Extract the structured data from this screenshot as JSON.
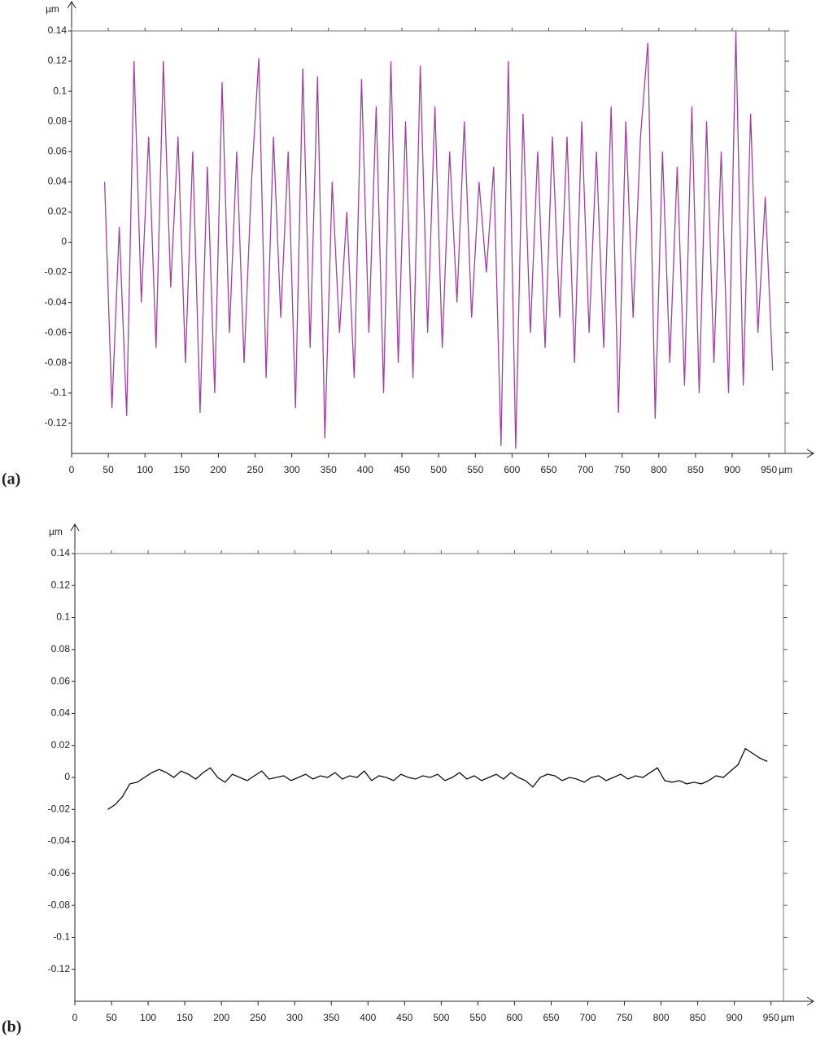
{
  "chart_data": [
    {
      "type": "line",
      "panel": "(a)",
      "ylabel": "µm",
      "xlabel": "µm",
      "xlim": [
        0,
        972
      ],
      "ylim": [
        -0.14,
        0.14
      ],
      "xticks": [
        0,
        50,
        100,
        150,
        200,
        250,
        300,
        350,
        400,
        450,
        500,
        550,
        600,
        650,
        700,
        750,
        800,
        850,
        900,
        950
      ],
      "yticks": [
        0.14,
        0.12,
        0.1,
        0.08,
        0.06,
        0.04,
        0.02,
        0,
        -0.02,
        -0.04,
        -0.06,
        -0.08,
        -0.1,
        -0.12
      ],
      "x": [
        45,
        55,
        65,
        75,
        85,
        95,
        105,
        115,
        125,
        135,
        145,
        155,
        165,
        175,
        185,
        195,
        205,
        215,
        225,
        235,
        245,
        255,
        265,
        275,
        285,
        295,
        305,
        315,
        325,
        335,
        345,
        355,
        365,
        375,
        385,
        395,
        405,
        415,
        425,
        435,
        445,
        455,
        465,
        475,
        485,
        495,
        505,
        515,
        525,
        535,
        545,
        555,
        565,
        575,
        585,
        595,
        605,
        615,
        625,
        635,
        645,
        655,
        665,
        675,
        685,
        695,
        705,
        715,
        725,
        735,
        745,
        755,
        765,
        775,
        785,
        795,
        805,
        815,
        825,
        835,
        845,
        855,
        865,
        875,
        885,
        895,
        905,
        915,
        925,
        935,
        945,
        955
      ],
      "series": [
        {
          "color": "#a040a0",
          "values": [
            0.04,
            -0.11,
            0.01,
            -0.115,
            0.12,
            -0.04,
            0.07,
            -0.07,
            0.12,
            -0.03,
            0.07,
            -0.08,
            0.06,
            -0.113,
            0.05,
            -0.1,
            0.106,
            -0.06,
            0.06,
            -0.08,
            0.04,
            0.122,
            -0.09,
            0.07,
            -0.05,
            0.06,
            -0.11,
            0.115,
            -0.07,
            0.11,
            -0.13,
            0.04,
            -0.06,
            0.02,
            -0.09,
            0.108,
            -0.06,
            0.09,
            -0.1,
            0.12,
            -0.08,
            0.08,
            -0.09,
            0.117,
            -0.06,
            0.09,
            -0.07,
            0.06,
            -0.04,
            0.08,
            -0.05,
            0.04,
            -0.02,
            0.05,
            -0.135,
            0.12,
            -0.137,
            0.085,
            -0.06,
            0.06,
            -0.07,
            0.07,
            -0.05,
            0.07,
            -0.08,
            0.08,
            -0.06,
            0.06,
            -0.07,
            0.09,
            -0.113,
            0.08,
            -0.05,
            0.07,
            0.132,
            -0.117,
            0.06,
            -0.08,
            0.05,
            -0.095,
            0.09,
            -0.1,
            0.08,
            -0.08,
            0.06,
            -0.1,
            0.14,
            -0.095,
            0.085,
            -0.06,
            0.03,
            -0.085
          ]
        }
      ]
    },
    {
      "type": "line",
      "panel": "(b)",
      "ylabel": "µm",
      "xlabel": "µm",
      "xlim": [
        0,
        967
      ],
      "ylim": [
        -0.14,
        0.14
      ],
      "xticks": [
        0,
        50,
        100,
        150,
        200,
        250,
        300,
        350,
        400,
        450,
        500,
        550,
        600,
        650,
        700,
        750,
        800,
        850,
        900,
        950
      ],
      "yticks": [
        0.14,
        0.12,
        0.1,
        0.08,
        0.06,
        0.04,
        0.02,
        0,
        -0.02,
        -0.04,
        -0.06,
        -0.08,
        -0.1,
        -0.12
      ],
      "x": [
        45,
        55,
        65,
        75,
        85,
        95,
        105,
        115,
        125,
        135,
        145,
        155,
        165,
        175,
        185,
        195,
        205,
        215,
        225,
        235,
        245,
        255,
        265,
        275,
        285,
        295,
        305,
        315,
        325,
        335,
        345,
        355,
        365,
        375,
        385,
        395,
        405,
        415,
        425,
        435,
        445,
        455,
        465,
        475,
        485,
        495,
        505,
        515,
        525,
        535,
        545,
        555,
        565,
        575,
        585,
        595,
        605,
        615,
        625,
        635,
        645,
        655,
        665,
        675,
        685,
        695,
        705,
        715,
        725,
        735,
        745,
        755,
        765,
        775,
        785,
        795,
        805,
        815,
        825,
        835,
        845,
        855,
        865,
        875,
        885,
        895,
        905,
        915,
        925,
        935,
        945
      ],
      "series": [
        {
          "color": "#111111",
          "values": [
            -0.02,
            -0.017,
            -0.012,
            -0.004,
            -0.003,
            0,
            0.003,
            0.005,
            0.003,
            0,
            0.004,
            0.002,
            -0.001,
            0.003,
            0.006,
            0,
            -0.003,
            0.002,
            0,
            -0.002,
            0.001,
            0.004,
            -0.001,
            0,
            0.001,
            -0.002,
            0,
            0.002,
            -0.001,
            0.001,
            0,
            0.003,
            -0.001,
            0.001,
            0,
            0.004,
            -0.002,
            0.001,
            0,
            -0.002,
            0.002,
            0,
            -0.001,
            0.001,
            0,
            0.002,
            -0.002,
            0,
            0.003,
            -0.001,
            0.001,
            -0.002,
            0,
            0.002,
            -0.001,
            0.003,
            0,
            -0.002,
            -0.006,
            0,
            0.002,
            0.001,
            -0.002,
            0,
            -0.001,
            -0.003,
            0,
            0.001,
            -0.002,
            0,
            0.002,
            -0.001,
            0.001,
            0,
            0.003,
            0.006,
            -0.002,
            -0.003,
            -0.002,
            -0.004,
            -0.003,
            -0.004,
            -0.002,
            0.001,
            0,
            0.004,
            0.008,
            0.018,
            0.015,
            0.012,
            0.01
          ]
        }
      ]
    }
  ]
}
